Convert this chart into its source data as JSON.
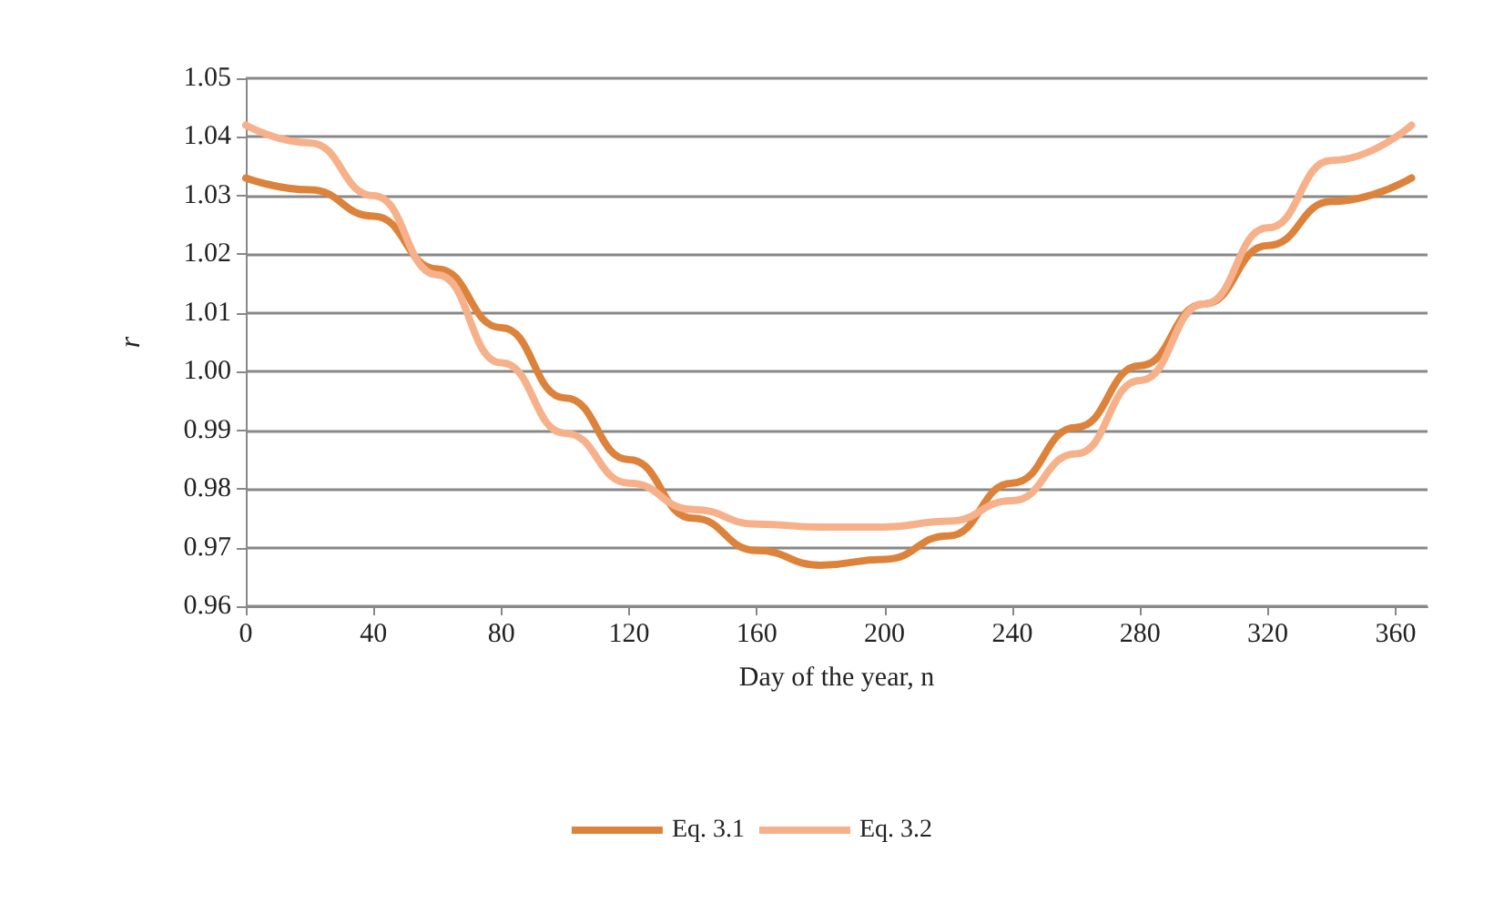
{
  "chart_data": {
    "type": "line",
    "xlabel": "Day of the year, n",
    "ylabel": "r",
    "xlim": [
      0,
      370
    ],
    "xticks": [
      0,
      40,
      80,
      120,
      160,
      200,
      240,
      280,
      320,
      360
    ],
    "ylim": [
      0.96,
      1.05
    ],
    "yticks": [
      0.96,
      0.97,
      0.98,
      0.99,
      {
        "value": 1,
        "label": "1.00"
      },
      1.01,
      1.02,
      1.03,
      1.04,
      1.05
    ],
    "grid": "y",
    "legend": "bottom",
    "marker": "none",
    "line_style": "solid",
    "x": [
      0,
      20,
      40,
      60,
      80,
      100,
      120,
      140,
      160,
      180,
      200,
      220,
      240,
      260,
      280,
      300,
      320,
      340,
      365
    ],
    "series": [
      {
        "name": "Eq. 3.1",
        "color": "#dd823b",
        "values": [
          1.033,
          1.031,
          1.0265,
          1.0175,
          1.0075,
          0.9955,
          0.985,
          0.975,
          0.9695,
          0.967,
          0.968,
          0.972,
          0.981,
          0.9905,
          1.001,
          1.0115,
          1.0215,
          1.029,
          1.033
        ]
      },
      {
        "name": "Eq. 3.2",
        "color": "#f6b08a",
        "values": [
          1.042,
          1.039,
          1.03,
          1.0165,
          1.0015,
          0.9895,
          0.981,
          0.9765,
          0.974,
          0.9735,
          0.9735,
          0.9745,
          0.978,
          0.986,
          0.9985,
          1.0115,
          1.0245,
          1.036,
          1.042
        ]
      }
    ]
  }
}
